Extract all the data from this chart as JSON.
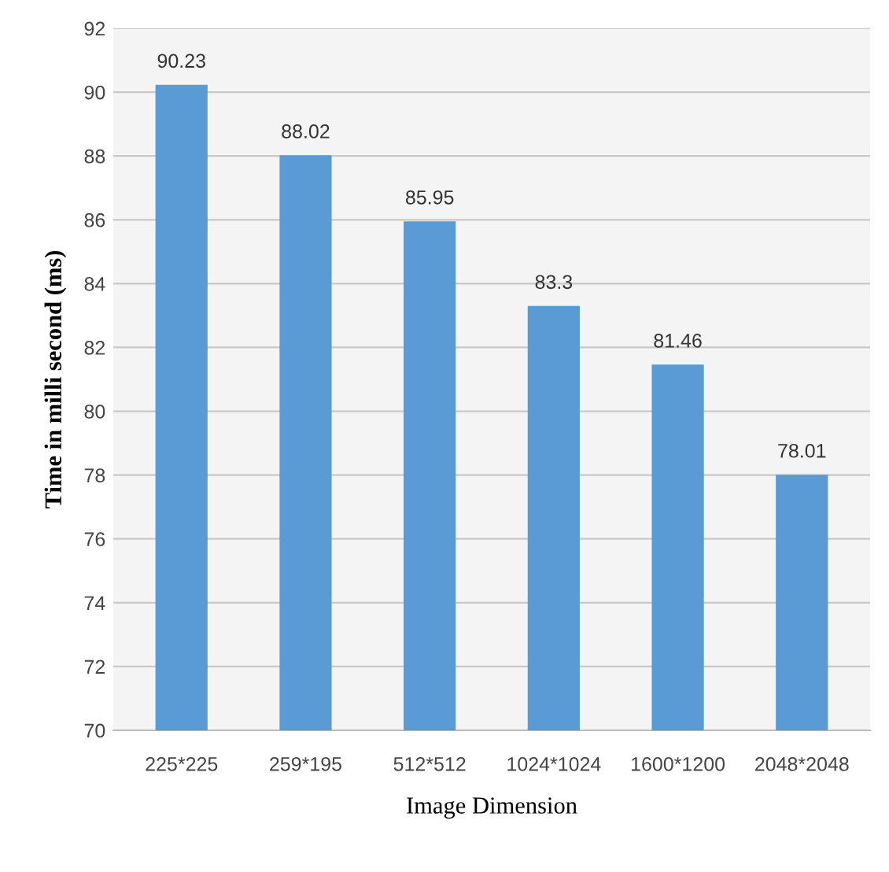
{
  "chart_data": {
    "type": "bar",
    "xlabel": "Image Dimension",
    "ylabel": "Time in milli second (ms)",
    "categories": [
      "225*225",
      "259*195",
      "512*512",
      "1024*1024",
      "1600*1200",
      "2048*2048"
    ],
    "values": [
      90.23,
      88.02,
      85.95,
      83.3,
      81.46,
      78.01
    ],
    "color": "#5b9bd5",
    "ylim": [
      70,
      92
    ],
    "yticks": [
      70,
      72,
      74,
      76,
      78,
      80,
      82,
      84,
      86,
      88,
      90,
      92
    ],
    "grid": "y",
    "data_labels": true
  }
}
